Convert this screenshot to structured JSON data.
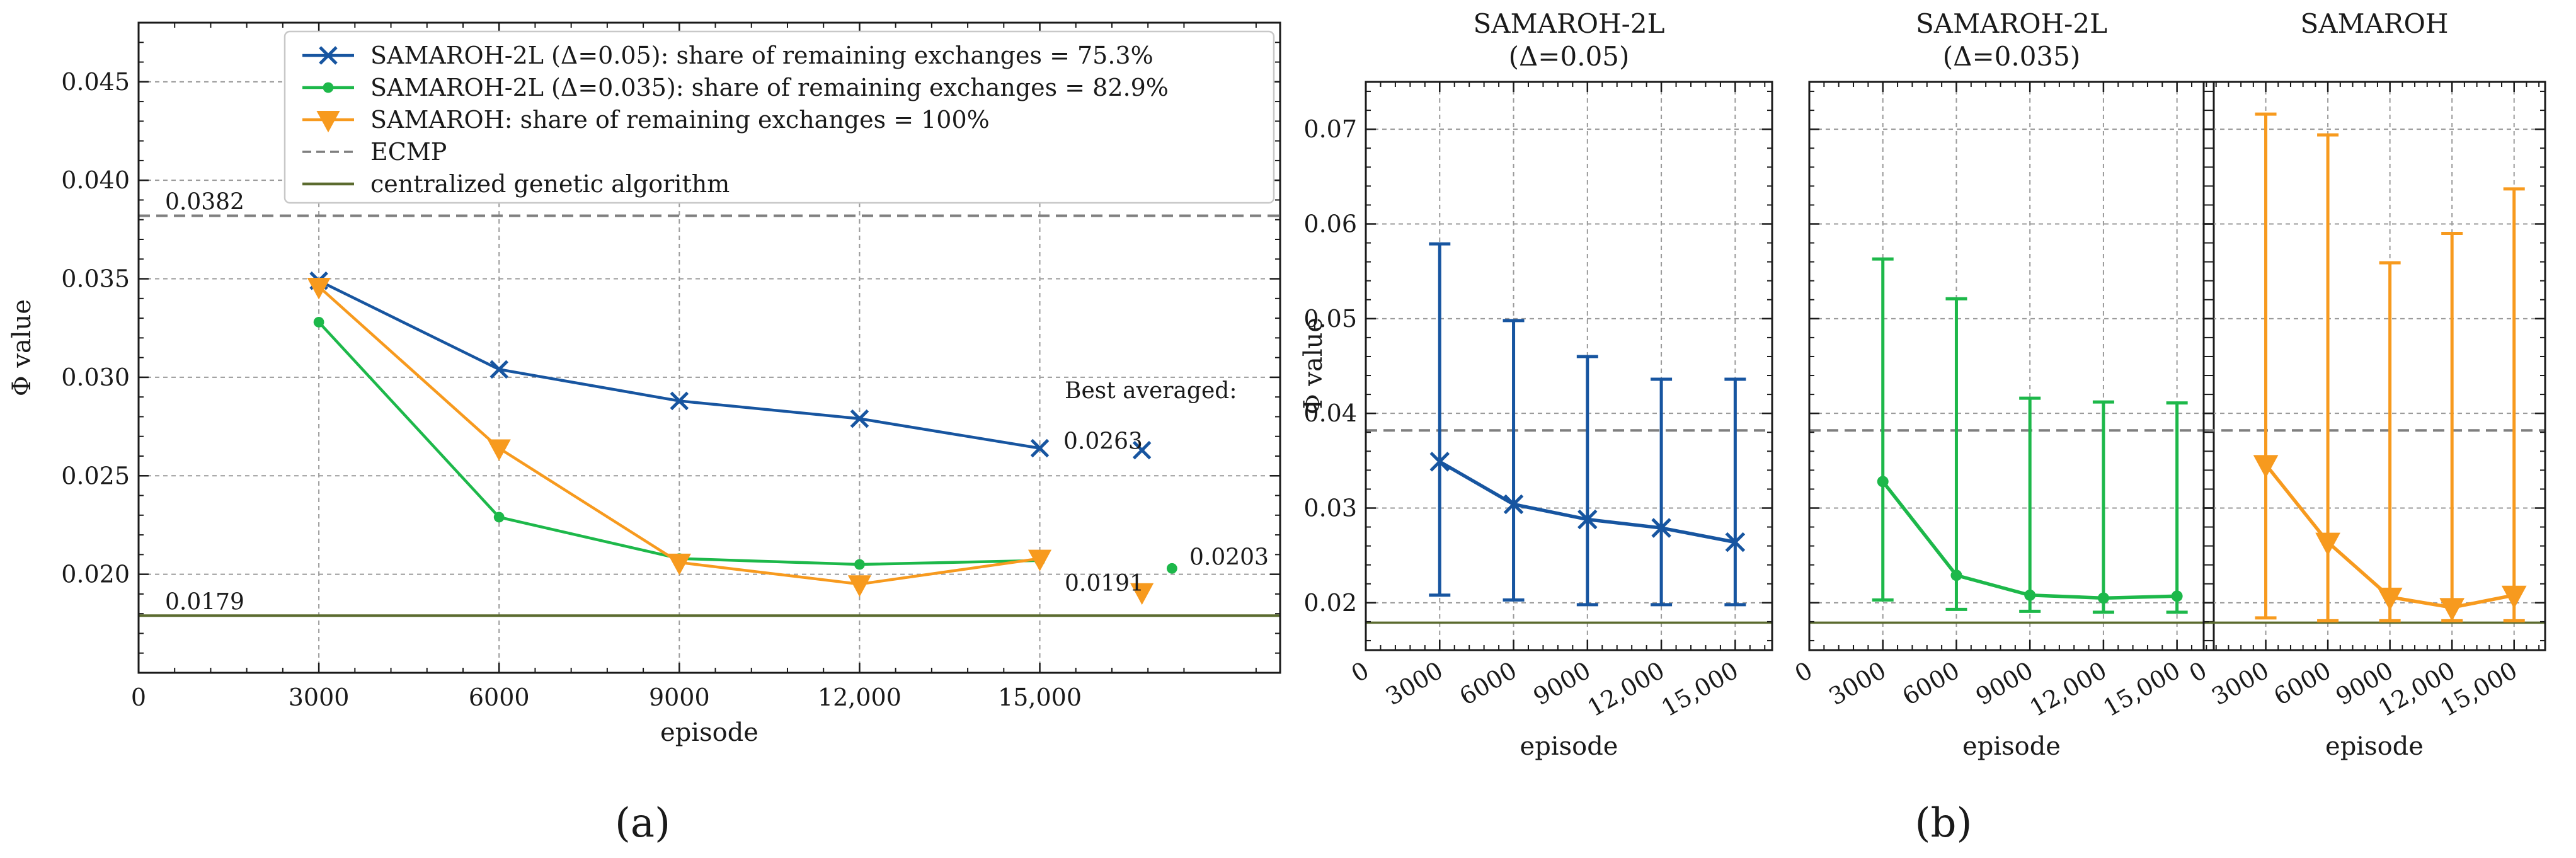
{
  "colors": {
    "blue": "#1755a0",
    "green": "#1db84a",
    "orange": "#f79a1e",
    "ecmp": "#7f7f7f",
    "ga": "#5b6b2f",
    "grid": "#9a9a9a"
  },
  "panel_labels": {
    "a": "(a)",
    "b": "(b)"
  },
  "chart_data": [
    {
      "id": "a",
      "type": "line",
      "xlabel": "episode",
      "ylabel": "Φ value",
      "xlim": [
        0,
        19000
      ],
      "ylim": [
        0.015,
        0.048
      ],
      "x_ticks": [
        0,
        3000,
        6000,
        9000,
        12000,
        15000
      ],
      "x_tick_labels": [
        "0",
        "3000",
        "6000",
        "9000",
        "12,000",
        "15,000"
      ],
      "y_ticks": [
        0.02,
        0.025,
        0.03,
        0.035,
        0.04,
        0.045
      ],
      "y_tick_labels": [
        "0.020",
        "0.025",
        "0.030",
        "0.035",
        "0.040",
        "0.045"
      ],
      "x": [
        3000,
        6000,
        9000,
        12000,
        15000
      ],
      "series": [
        {
          "key": "blue",
          "name": "SAMAROH-2L (Δ=0.05): share of remaining exchanges = 75.3%",
          "marker": "x",
          "values": [
            0.0349,
            0.0304,
            0.0288,
            0.0279,
            0.0264
          ],
          "best": 0.0263,
          "best_label": "0.0263",
          "best_x": 16700
        },
        {
          "key": "green",
          "name": "SAMAROH-2L (Δ=0.035): share of remaining exchanges = 82.9%",
          "marker": "dot",
          "values": [
            0.0328,
            0.0229,
            0.0208,
            0.0205,
            0.0207
          ],
          "best": 0.0203,
          "best_label": "0.0203",
          "best_x": 17200
        },
        {
          "key": "orange",
          "name": "SAMAROH: share of remaining exchanges = 100%",
          "marker": "tri",
          "values": [
            0.0346,
            0.0264,
            0.0206,
            0.0195,
            0.0208
          ],
          "best": 0.0191,
          "best_label": "0.0191",
          "best_x": 16700
        }
      ],
      "hlines": [
        {
          "key": "ecmp",
          "name": "ECMP",
          "value": 0.0382,
          "label": "0.0382",
          "style": "dashed"
        },
        {
          "key": "ga",
          "name": "centralized genetic algorithm",
          "value": 0.0179,
          "label": "0.0179",
          "style": "solid"
        }
      ],
      "best_averaged_label": "Best averaged:"
    },
    {
      "id": "b",
      "type": "errorbar",
      "xlabel": "episode",
      "ylabel": "Φ value",
      "xlim": [
        0,
        16500
      ],
      "ylim": [
        0.015,
        0.075
      ],
      "x_ticks": [
        0,
        3000,
        6000,
        9000,
        12000,
        15000
      ],
      "x_tick_labels": [
        "0",
        "3000",
        "6000",
        "9000",
        "12,000",
        "15,000"
      ],
      "y_ticks": [
        0.02,
        0.03,
        0.04,
        0.05,
        0.06,
        0.07
      ],
      "y_tick_labels": [
        "0.02",
        "0.03",
        "0.04",
        "0.05",
        "0.06",
        "0.07"
      ],
      "ecmp": 0.0382,
      "ga": 0.0179,
      "x": [
        3000,
        6000,
        9000,
        12000,
        15000
      ],
      "panels": [
        {
          "key": "blue",
          "title": [
            "SAMAROH-2L",
            "(Δ=0.05)"
          ],
          "marker": "x",
          "values": [
            0.0349,
            0.0304,
            0.0288,
            0.0279,
            0.0264
          ],
          "upper": [
            0.0579,
            0.0498,
            0.046,
            0.0436,
            0.0436
          ],
          "lower": [
            0.0208,
            0.0203,
            0.0198,
            0.0198,
            0.0198
          ]
        },
        {
          "key": "green",
          "title": [
            "SAMAROH-2L",
            "(Δ=0.035)"
          ],
          "marker": "dot",
          "values": [
            0.0328,
            0.0229,
            0.0208,
            0.0205,
            0.0207
          ],
          "upper": [
            0.0563,
            0.0521,
            0.0416,
            0.0412,
            0.0411
          ],
          "lower": [
            0.0203,
            0.0193,
            0.0191,
            0.019,
            0.019
          ]
        },
        {
          "key": "orange",
          "title": [
            "SAMAROH"
          ],
          "marker": "tri",
          "values": [
            0.0346,
            0.0264,
            0.0206,
            0.0195,
            0.0208
          ],
          "upper": [
            0.0716,
            0.0694,
            0.0559,
            0.059,
            0.0637
          ],
          "lower": [
            0.0184,
            0.0181,
            0.0181,
            0.0181,
            0.0181
          ]
        }
      ]
    }
  ]
}
